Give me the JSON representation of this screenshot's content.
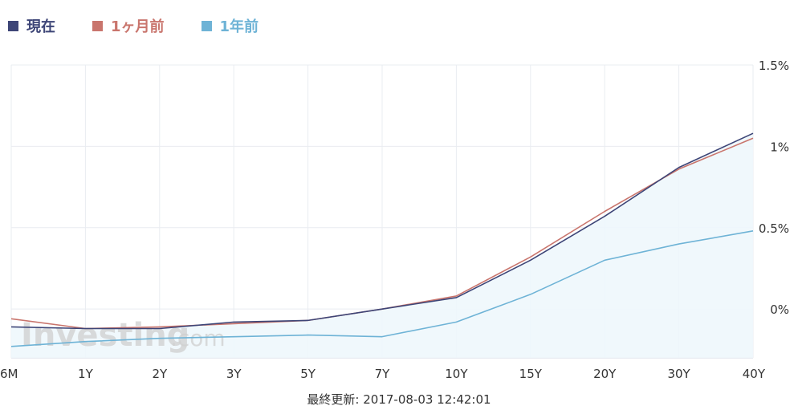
{
  "chart_data": {
    "type": "line",
    "categories": [
      "6M",
      "1Y",
      "2Y",
      "3Y",
      "5Y",
      "7Y",
      "10Y",
      "15Y",
      "20Y",
      "30Y",
      "40Y"
    ],
    "series": [
      {
        "name": "現在",
        "color": "#3d4577",
        "values": [
          -0.11,
          -0.12,
          -0.12,
          -0.08,
          -0.07,
          0.0,
          0.07,
          0.3,
          0.57,
          0.87,
          1.08
        ]
      },
      {
        "name": "1ヶ月前",
        "color": "#c9756d",
        "values": [
          -0.06,
          -0.12,
          -0.11,
          -0.09,
          -0.07,
          0.0,
          0.08,
          0.32,
          0.6,
          0.86,
          1.05
        ]
      },
      {
        "name": "1年前",
        "color": "#6eb3d6",
        "fill": "#eef7fc",
        "values": [
          -0.23,
          -0.2,
          -0.18,
          -0.17,
          -0.16,
          -0.17,
          -0.08,
          0.09,
          0.3,
          0.4,
          0.48
        ]
      }
    ],
    "ylim": [
      -0.3,
      1.5
    ],
    "yticks": [
      0.0,
      0.5,
      1.0,
      1.5
    ],
    "ytick_labels": [
      "0%",
      "0.5%",
      "1%",
      "1.5%"
    ],
    "y_axis_side": "right",
    "grid": true,
    "legend_position": "top-left",
    "watermark": "Investing.com",
    "footer": "最終更新: 2017-08-03 12:42:01"
  }
}
